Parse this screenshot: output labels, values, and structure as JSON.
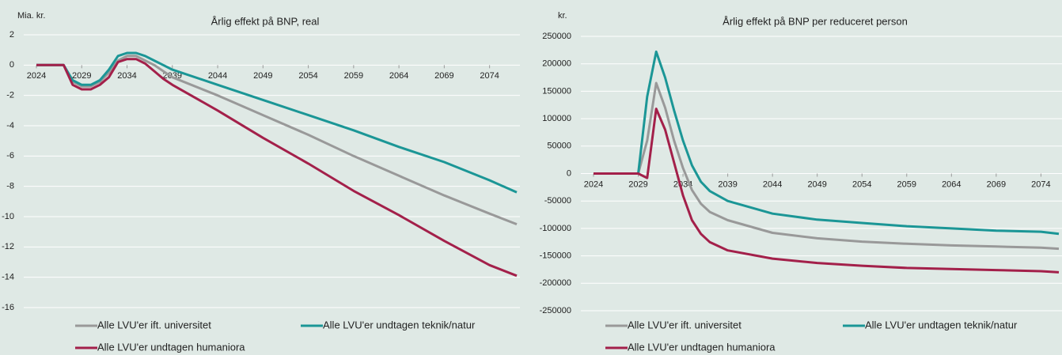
{
  "chart_data": [
    {
      "type": "line",
      "title": "Årlig effekt på BNP, real",
      "y_label": "Mia. kr.",
      "x": [
        2024,
        2027,
        2028,
        2029,
        2030,
        2031,
        2032,
        2033,
        2034,
        2035,
        2036,
        2037,
        2038,
        2039,
        2044,
        2049,
        2054,
        2059,
        2064,
        2069,
        2074,
        2077
      ],
      "xlim": [
        2024,
        2077
      ],
      "xticks": [
        2024,
        2029,
        2034,
        2039,
        2044,
        2049,
        2054,
        2059,
        2064,
        2069,
        2074
      ],
      "ylim": [
        -16,
        2
      ],
      "yticks": [
        2,
        0,
        -2,
        -4,
        -6,
        -8,
        -10,
        -12,
        -14,
        -16
      ],
      "grid": true,
      "series": [
        {
          "name": "Alle LVU'er ift. universitet",
          "color": "#999999",
          "values": [
            0,
            0,
            -1.1,
            -1.4,
            -1.4,
            -1.1,
            -0.5,
            0.3,
            0.6,
            0.6,
            0.3,
            0,
            -0.4,
            -0.8,
            -2.0,
            -3.3,
            -4.6,
            -6.0,
            -7.3,
            -8.6,
            -9.8,
            -10.5
          ]
        },
        {
          "name": "Alle LVU'er undtagen teknik/natur",
          "color": "#1b9696",
          "values": [
            0,
            0,
            -1.0,
            -1.3,
            -1.3,
            -1.0,
            -0.3,
            0.6,
            0.8,
            0.8,
            0.6,
            0.3,
            0,
            -0.3,
            -1.3,
            -2.3,
            -3.3,
            -4.3,
            -5.4,
            -6.4,
            -7.6,
            -8.4
          ]
        },
        {
          "name": "Alle LVU'er undtagen humaniora",
          "color": "#a3204a",
          "values": [
            0,
            0,
            -1.3,
            -1.6,
            -1.6,
            -1.3,
            -0.8,
            0.2,
            0.4,
            0.4,
            0.1,
            -0.4,
            -0.9,
            -1.3,
            -3.0,
            -4.8,
            -6.5,
            -8.3,
            -9.9,
            -11.6,
            -13.2,
            -13.9
          ]
        }
      ]
    },
    {
      "type": "line",
      "title": "Årlig effekt på BNP per reduceret person",
      "y_label": "kr.",
      "x": [
        2024,
        2029,
        2030,
        2031,
        2032,
        2033,
        2034,
        2035,
        2036,
        2037,
        2039,
        2044,
        2049,
        2054,
        2059,
        2064,
        2069,
        2074,
        2076
      ],
      "xlim": [
        2024,
        2076
      ],
      "xticks": [
        2024,
        2029,
        2034,
        2039,
        2044,
        2049,
        2054,
        2059,
        2064,
        2069,
        2074
      ],
      "ylim": [
        -250000,
        250000
      ],
      "yticks": [
        250000,
        200000,
        150000,
        100000,
        50000,
        0,
        -50000,
        -100000,
        -150000,
        -200000,
        -250000
      ],
      "grid": true,
      "series": [
        {
          "name": "Alle LVU'er ift. universitet",
          "color": "#999999",
          "values": [
            0,
            0,
            60000,
            165000,
            120000,
            60000,
            10000,
            -30000,
            -55000,
            -70000,
            -85000,
            -108000,
            -118000,
            -124000,
            -128000,
            -131000,
            -133000,
            -135000,
            -137000
          ]
        },
        {
          "name": "Alle LVU'er undtagen teknik/natur",
          "color": "#1b9696",
          "values": [
            0,
            0,
            140000,
            222000,
            175000,
            115000,
            60000,
            15000,
            -15000,
            -32000,
            -50000,
            -73000,
            -84000,
            -90000,
            -96000,
            -100000,
            -104000,
            -106000,
            -110000
          ]
        },
        {
          "name": "Alle LVU'er undtagen humaniora",
          "color": "#a3204a",
          "values": [
            0,
            0,
            -8000,
            118000,
            80000,
            20000,
            -40000,
            -85000,
            -110000,
            -125000,
            -140000,
            -155000,
            -163000,
            -168000,
            -172000,
            -174000,
            -176000,
            -178000,
            -180000
          ]
        }
      ]
    }
  ]
}
